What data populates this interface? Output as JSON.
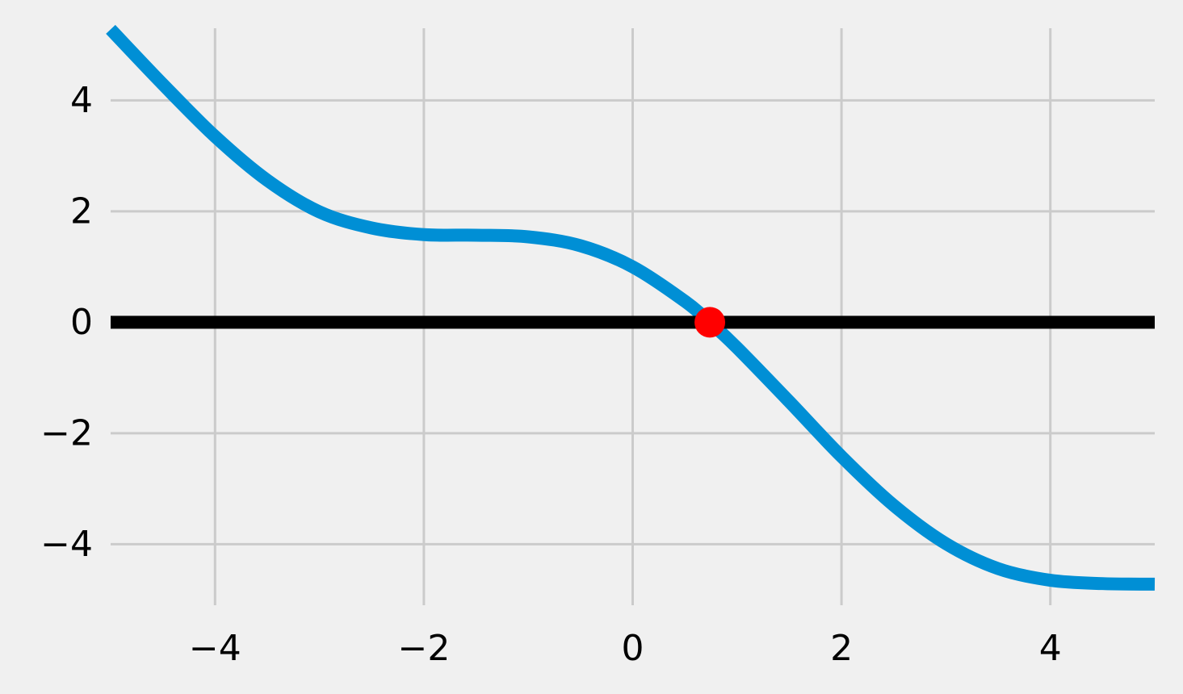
{
  "chart_data": {
    "type": "line",
    "title": "",
    "xlabel": "",
    "ylabel": "",
    "xlim": [
      -5,
      5
    ],
    "ylim": [
      -5.1,
      5.3
    ],
    "grid": true,
    "x_ticks": [
      -4,
      -2,
      0,
      2,
      4
    ],
    "x_tick_labels": [
      "−4",
      "−2",
      "0",
      "2",
      "4"
    ],
    "y_ticks": [
      -4,
      -2,
      0,
      2,
      4
    ],
    "y_tick_labels": [
      "−4",
      "−2",
      "0",
      "2",
      "4"
    ],
    "series": [
      {
        "x": [
          -5.0,
          -4.5,
          -4.0,
          -3.5,
          -3.0,
          -2.5,
          -2.0,
          -1.5,
          -1.0,
          -0.5,
          0.0,
          0.5,
          0.739,
          1.0,
          1.5,
          2.0,
          2.5,
          3.0,
          3.5,
          4.0,
          4.5,
          5.0
        ],
        "y": [
          5.28,
          4.29,
          3.35,
          2.56,
          1.99,
          1.7,
          1.58,
          1.57,
          1.54,
          1.38,
          1.0,
          0.38,
          0.0,
          -0.46,
          -1.43,
          -2.42,
          -3.3,
          -3.99,
          -4.44,
          -4.65,
          -4.71,
          -4.72
        ],
        "color": "#008fd5"
      },
      {
        "x": [
          -5,
          5
        ],
        "y": [
          0,
          0
        ],
        "color": "#000000"
      }
    ],
    "points": [
      {
        "x": 0.739,
        "y": 0.0,
        "color": "#ff0000"
      }
    ],
    "colors": {
      "background": "#f0f0f0",
      "grid": "#cbcbcb"
    }
  }
}
